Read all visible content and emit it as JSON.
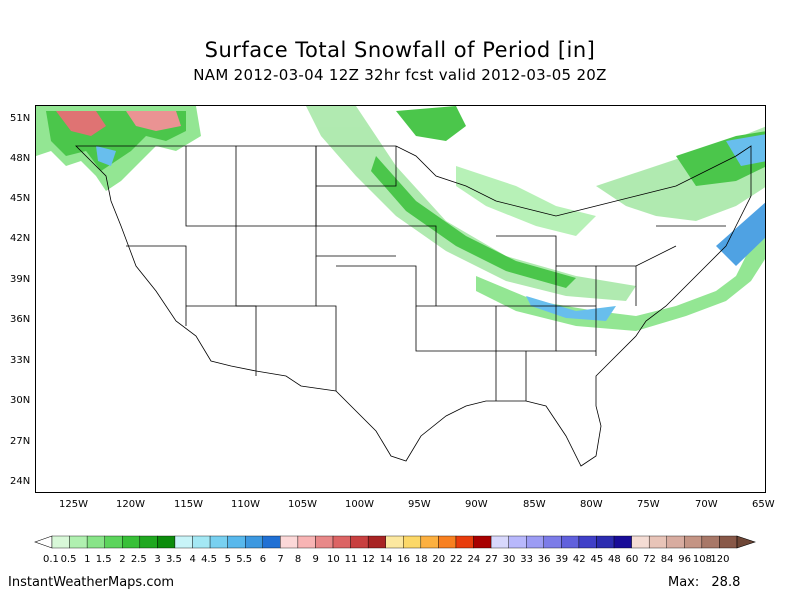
{
  "title": "Surface Total Snowfall of Period [in]",
  "subtitle": "NAM 2012-03-04 12Z 32hr fcst valid 2012-03-05 20Z",
  "map": {
    "lat_labels": [
      "51N",
      "48N",
      "45N",
      "42N",
      "39N",
      "36N",
      "33N",
      "30N",
      "27N",
      "24N"
    ],
    "lon_labels": [
      "125W",
      "120W",
      "115W",
      "110W",
      "105W",
      "100W",
      "95W",
      "90W",
      "85W",
      "80W",
      "75W",
      "70W",
      "65W"
    ]
  },
  "color_scale": {
    "labels": [
      "0.1",
      "0.5",
      "1",
      "1.5",
      "2",
      "2.5",
      "3",
      "3.5",
      "4",
      "4.5",
      "5",
      "5.5",
      "6",
      "7",
      "8",
      "9",
      "10",
      "11",
      "12",
      "14",
      "16",
      "18",
      "20",
      "22",
      "24",
      "27",
      "30",
      "33",
      "36",
      "39",
      "42",
      "45",
      "48",
      "60",
      "72",
      "84",
      "96",
      "108",
      "120"
    ],
    "colors": [
      "#d8f8d8",
      "#b0f0b0",
      "#88e488",
      "#5cd45c",
      "#38c038",
      "#20a820",
      "#0c8c0c",
      "#c8f4f8",
      "#a4e8f4",
      "#78d0f0",
      "#58b8ec",
      "#3c98e0",
      "#2070d4",
      "#fcd8d8",
      "#f8b4b4",
      "#e88888",
      "#dc6464",
      "#c84040",
      "#a82424",
      "#fce8a0",
      "#fcd868",
      "#fcb040",
      "#f88020",
      "#e83c0c",
      "#a80000",
      "#d8d8fc",
      "#b8b8fc",
      "#9c9cf4",
      "#7c7ce8",
      "#6060dc",
      "#4040c8",
      "#2c2cb0",
      "#180c98",
      "#f4dcd4",
      "#e8c4b8",
      "#d8aca0",
      "#c49484",
      "#a87868",
      "#885848"
    ]
  },
  "footer": {
    "site": "InstantWeatherMaps.com",
    "max_label": "Max:",
    "max_value": "28.8"
  },
  "colors": {
    "snow_light": "#a8e8a8",
    "snow_mid": "#38c038",
    "snow_heavy": "#0c8c0c",
    "snow_blue": "#58b8ec",
    "snow_red": "#dc6464"
  }
}
